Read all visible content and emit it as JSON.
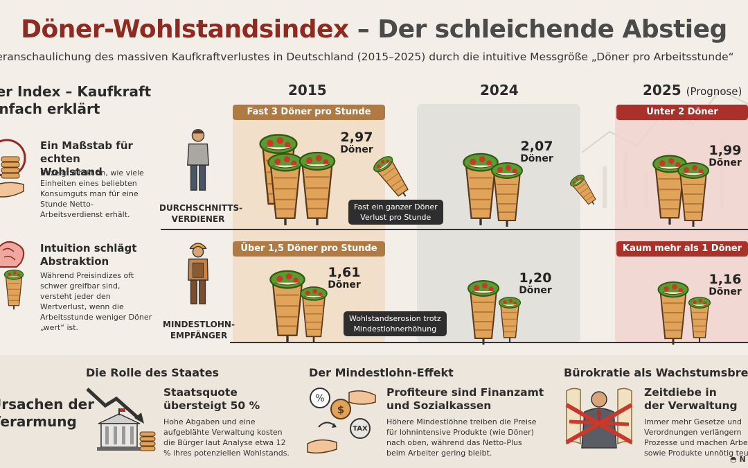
{
  "header": {
    "title_part1": "Döner-Wohlstandsindex",
    "title_part2": " – Der schleichende Abstieg",
    "subtitle": "Veranschaulichung des massiven Kaufkraftverlustes in Deutschland (2015–2025) durch die intuitive Messgröße „Döner pro Arbeitsstunde“"
  },
  "left": {
    "heading_line1": "Der Index – Kaufkraft",
    "heading_line2": "einfach erklärt",
    "block1_title": "Ein Maßstab für echten Wohlstand",
    "block1_text": "Er zeigt direkt an, wie viele Einheiten eines beliebten Konsumguts man für eine Stunde Netto-Arbeitsverdienst erhält.",
    "block2_title": "Intuition schlägt Abstraktion",
    "block2_text": "Während Preisindizes oft schwer greifbar sind, versteht jeder den Wertverlust, wenn die Arbeitsstunde weniger Döner „wert“ ist."
  },
  "columns": {
    "year_2015": "2015",
    "year_2024": "2024",
    "year_2025": "2025",
    "year_2025_note": "(Prognose)"
  },
  "rows": {
    "avg_label_line1": "DURCHSCHNITTS-",
    "avg_label_line2": "VERDIENER",
    "min_label_line1": "MINDESTLOHN-",
    "min_label_line2": "EMPFÄNGER"
  },
  "bands": {
    "avg_2015": "Fast 3 Döner pro Stunde",
    "avg_2025": "Unter 2 Döner",
    "min_2015": "Über 1,5 Döner pro Stunde",
    "min_2025": "Kaum mehr als 1 Döner"
  },
  "values": {
    "avg_2015": "2,97",
    "avg_2024": "2,07",
    "avg_2025": "1,99",
    "min_2015": "1,61",
    "min_2024": "1,20",
    "min_2025": "1,16",
    "unit": "Döner"
  },
  "callouts": {
    "avg_loss_line1": "Fast ein ganzer Döner",
    "avg_loss_line2": "Verlust pro Stunde",
    "min_loss_line1": "Wohlstandserosion trotz",
    "min_loss_line2": "Mindestlohnerhöhung"
  },
  "bottom": {
    "causes_line1": "Ursachen der",
    "causes_line2": "Verarmung",
    "sec1_heading": "Die Rolle des Staates",
    "sec1_sub_line1": "Staatsquote",
    "sec1_sub_line2": "übersteigt 50 %",
    "sec1_text": "Hohe Abgaben und eine aufgeblähte Verwaltung kosten die Bürger laut Analyse etwa 12 % ihres potenziellen Wohlstands.",
    "sec2_heading": "Der Mindestlohn-Effekt",
    "sec2_sub_line1": "Profiteure sind Finanzamt",
    "sec2_sub_line2": "und Sozialkassen",
    "sec2_text": "Höhere Mindestlöhne treiben die Preise für lohnintensive Produkte (wie Döner) nach oben, während das Netto-Plus beim Arbeiter gering bleibt.",
    "sec2_tax_label": "TAX",
    "sec3_heading": "Bürokratie als Wachstumsbremse",
    "sec3_sub_line1": "Zeitdiebe in",
    "sec3_sub_line2": "der Verwaltung",
    "sec3_text": "Immer mehr Gesetze und Verordnungen verlängern Prozesse und machen Arbeit sowie Produkte unnötig teuer."
  },
  "footer": {
    "logo_text": "N"
  },
  "colors": {
    "title_red": "#8e2a20",
    "band_brown": "#b07a45",
    "band_red": "#a8322a",
    "col_2015_bg": "#f1d9bf",
    "col_2024_bg": "#e2e1dc",
    "col_2025_bg": "#f1d3cf",
    "bottom_bg": "#ede6dc",
    "doner_bread": "#e0a35a"
  }
}
